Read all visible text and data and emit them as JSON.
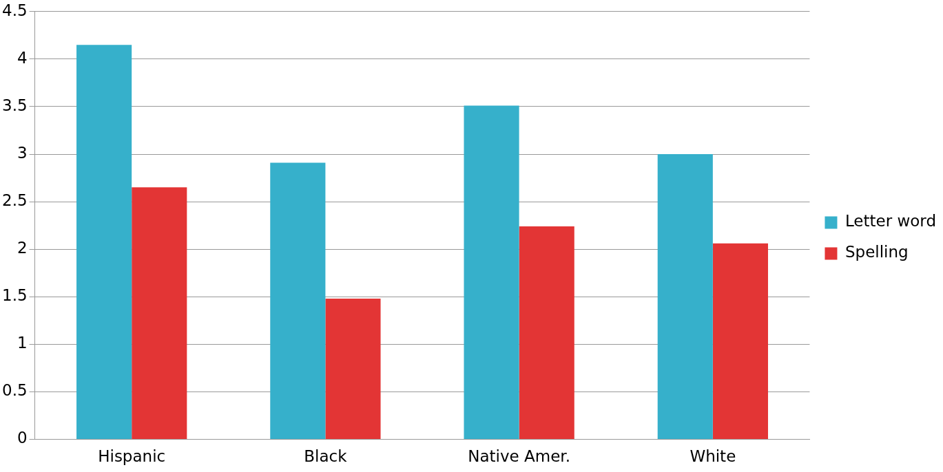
{
  "chart_data": {
    "type": "bar",
    "categories": [
      "Hispanic",
      "Black",
      "Native Amer.",
      "White"
    ],
    "series": [
      {
        "name": "Letter word",
        "color": "#36b0cb",
        "values": [
          4.15,
          2.91,
          3.51,
          3.0
        ]
      },
      {
        "name": "Spelling",
        "color": "#e33535",
        "values": [
          2.65,
          1.48,
          2.24,
          2.06
        ]
      }
    ],
    "ylim": [
      0,
      4.5
    ],
    "yticks": [
      0,
      0.5,
      1,
      1.5,
      2,
      2.5,
      3,
      3.5,
      4,
      4.5
    ],
    "grid": "y",
    "legend": "right"
  }
}
